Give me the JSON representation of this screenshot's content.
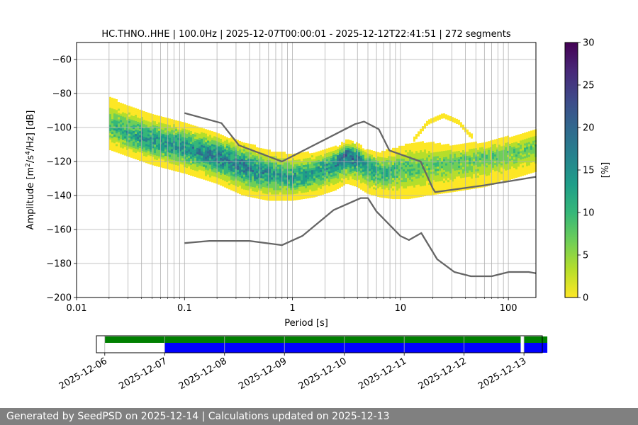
{
  "footer": "Generated by SeedPSD on 2025-12-14 | Calculations updated on 2025-12-13",
  "colors": {
    "viridis": [
      "#fde725",
      "#b5de2b",
      "#6ece58",
      "#35b779",
      "#1f9e89",
      "#26828e",
      "#31688e",
      "#3e4989",
      "#482878",
      "#440154"
    ],
    "model_line": "#666666",
    "coverage_green": "#008000",
    "coverage_blue": "#0000ff"
  },
  "chart_data": [
    {
      "type": "heatmap",
      "title": "HC.THNO..HHE | 100.0Hz | 2025-12-07T00:00:01 - 2025-12-12T22:41:51 | 272 segments",
      "xlabel": "Period [s]",
      "ylabel_parts": [
        "Amplitude [m",
        "2",
        "/s",
        "4",
        "/Hz] [dB]"
      ],
      "x_scale": "log",
      "xlim": [
        0.01,
        180
      ],
      "ylim": [
        -200,
        -50
      ],
      "x_ticks": [
        0.01,
        0.1,
        1,
        10,
        100
      ],
      "x_tick_labels": [
        "0.01",
        "0.1",
        "1",
        "10",
        "100"
      ],
      "y_ticks": [
        -200,
        -180,
        -160,
        -140,
        -120,
        -100,
        -80,
        -60
      ],
      "y_tick_labels": [
        "−200",
        "−180",
        "−160",
        "−140",
        "−120",
        "−100",
        "−80",
        "−60"
      ],
      "grid": true,
      "colorbar": {
        "label": "[%]",
        "range": [
          0,
          30
        ],
        "ticks": [
          0,
          5,
          10,
          15,
          20,
          25,
          30
        ],
        "tick_labels": [
          "0",
          "5",
          "10",
          "15",
          "20",
          "25",
          "30"
        ]
      },
      "density_band": {
        "period": [
          0.02,
          0.03,
          0.05,
          0.1,
          0.2,
          0.35,
          0.6,
          1.0,
          1.6,
          2.5,
          3.2,
          4.0,
          5.0,
          6.5,
          8.5,
          12,
          18,
          30,
          60,
          100,
          180
        ],
        "mode_db": [
          -100,
          -104,
          -108,
          -112,
          -117,
          -123,
          -128,
          -130,
          -127,
          -121,
          -116,
          -118,
          -123,
          -127,
          -126,
          -124,
          -123,
          -121,
          -118,
          -116,
          -112
        ],
        "lower_db": [
          -113,
          -117,
          -122,
          -127,
          -133,
          -140,
          -143,
          -143,
          -141,
          -137,
          -133,
          -135,
          -139,
          -141,
          -142,
          -142,
          -140,
          -138,
          -135,
          -131,
          -126
        ],
        "upper_db": [
          -82,
          -88,
          -93,
          -98,
          -104,
          -109,
          -114,
          -116,
          -115,
          -112,
          -108,
          -110,
          -114,
          -115,
          -113,
          -110,
          -109,
          -111,
          -109,
          -106,
          -102
        ],
        "peak_percent": [
          9,
          12,
          14,
          14,
          17,
          16,
          14,
          13,
          13,
          15,
          18,
          16,
          13,
          11,
          10,
          9,
          8,
          8,
          8,
          8,
          8
        ],
        "secondary_arc": {
          "period": [
            13,
            18,
            25,
            35,
            45
          ],
          "db": [
            -108,
            -97,
            -93,
            -97,
            -105
          ],
          "percent": 2
        }
      },
      "series": [
        {
          "x": [
            0.1,
            0.22,
            0.32,
            0.8,
            3.8,
            4.6,
            6.3,
            7.9,
            15.4,
            20,
            21,
            60,
            180
          ],
          "y": [
            -91.5,
            -97.4,
            -110.5,
            -120,
            -98.0,
            -96.5,
            -101.0,
            -113.5,
            -120,
            -136,
            -138,
            -134,
            -129
          ]
        },
        {
          "x": [
            0.1,
            0.17,
            0.4,
            0.8,
            1.24,
            2.4,
            4.3,
            5.0,
            6.0,
            10,
            12,
            15.6,
            21.9,
            31.6,
            45,
            70,
            101,
            154,
            180
          ],
          "y": [
            -168,
            -166.7,
            -166.7,
            -169.2,
            -163.7,
            -148.6,
            -141.5,
            -141.5,
            -149.4,
            -163.8,
            -166.2,
            -162.1,
            -177.5,
            -185,
            -187.5,
            -187.5,
            -185,
            -185,
            -185.7
          ]
        }
      ]
    },
    {
      "type": "bar",
      "x_ticks": [
        "2025-12-06",
        "2025-12-07",
        "2025-12-08",
        "2025-12-09",
        "2025-12-10",
        "2025-12-11",
        "2025-12-12",
        "2025-12-13"
      ],
      "xlim": [
        "2025-12-05T20:39",
        "2025-12-13T07:21"
      ],
      "series": [
        {
          "color": "green",
          "spans": [
            [
              "2025-12-06T00:00",
              "2025-12-12T22:41"
            ],
            [
              "2025-12-13T00:00",
              "2025-12-13T00:00"
            ]
          ]
        },
        {
          "color": "blue",
          "spans": [
            [
              "2025-12-07T00:00",
              "2025-12-12T22:41"
            ],
            [
              "2025-12-13T00:00",
              "2025-12-13T00:00"
            ]
          ]
        }
      ]
    }
  ]
}
